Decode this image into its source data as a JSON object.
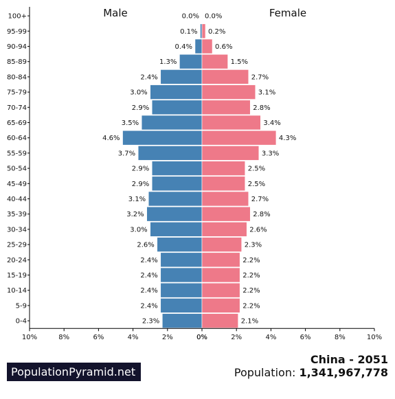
{
  "chart_data": {
    "type": "bar",
    "orientation": "horizontal-pyramid",
    "xlim": [
      -10,
      10
    ],
    "x_ticks": [
      "10%",
      "8%",
      "6%",
      "4%",
      "2%",
      "0%",
      "0%",
      "2%",
      "4%",
      "6%",
      "8%",
      "10%"
    ],
    "categories": [
      "100+",
      "95-99",
      "90-94",
      "85-89",
      "80-84",
      "75-79",
      "70-74",
      "65-69",
      "60-64",
      "55-59",
      "50-54",
      "45-49",
      "40-44",
      "35-39",
      "30-34",
      "25-29",
      "20-24",
      "15-19",
      "10-14",
      "5-9",
      "0-4"
    ],
    "series": [
      {
        "name": "Male",
        "color": "#4682b4",
        "values": [
          0.0,
          0.1,
          0.4,
          1.3,
          2.4,
          3.0,
          2.9,
          3.5,
          4.6,
          3.7,
          2.9,
          2.9,
          3.1,
          3.2,
          3.0,
          2.6,
          2.4,
          2.4,
          2.4,
          2.4,
          2.3
        ],
        "labels": [
          "0.0%",
          "0.1%",
          "0.4%",
          "1.3%",
          "2.4%",
          "3.0%",
          "2.9%",
          "3.5%",
          "4.6%",
          "3.7%",
          "2.9%",
          "2.9%",
          "3.1%",
          "3.2%",
          "3.0%",
          "2.6%",
          "2.4%",
          "2.4%",
          "2.4%",
          "2.4%",
          "2.3%"
        ]
      },
      {
        "name": "Female",
        "color": "#ee7989",
        "values": [
          0.0,
          0.2,
          0.6,
          1.5,
          2.7,
          3.1,
          2.8,
          3.4,
          4.3,
          3.3,
          2.5,
          2.5,
          2.7,
          2.8,
          2.6,
          2.3,
          2.2,
          2.2,
          2.2,
          2.2,
          2.1
        ],
        "labels": [
          "0.0%",
          "0.2%",
          "0.6%",
          "1.5%",
          "2.7%",
          "3.1%",
          "2.8%",
          "3.4%",
          "4.3%",
          "3.3%",
          "2.5%",
          "2.5%",
          "2.7%",
          "2.8%",
          "2.6%",
          "2.3%",
          "2.2%",
          "2.2%",
          "2.2%",
          "2.2%",
          "2.1%"
        ]
      }
    ],
    "legend": "top"
  },
  "footer": {
    "brand": "PopulationPyramid.net",
    "title": "China - 2051",
    "population_label": "Population:",
    "population_value": "1,341,967,778"
  }
}
